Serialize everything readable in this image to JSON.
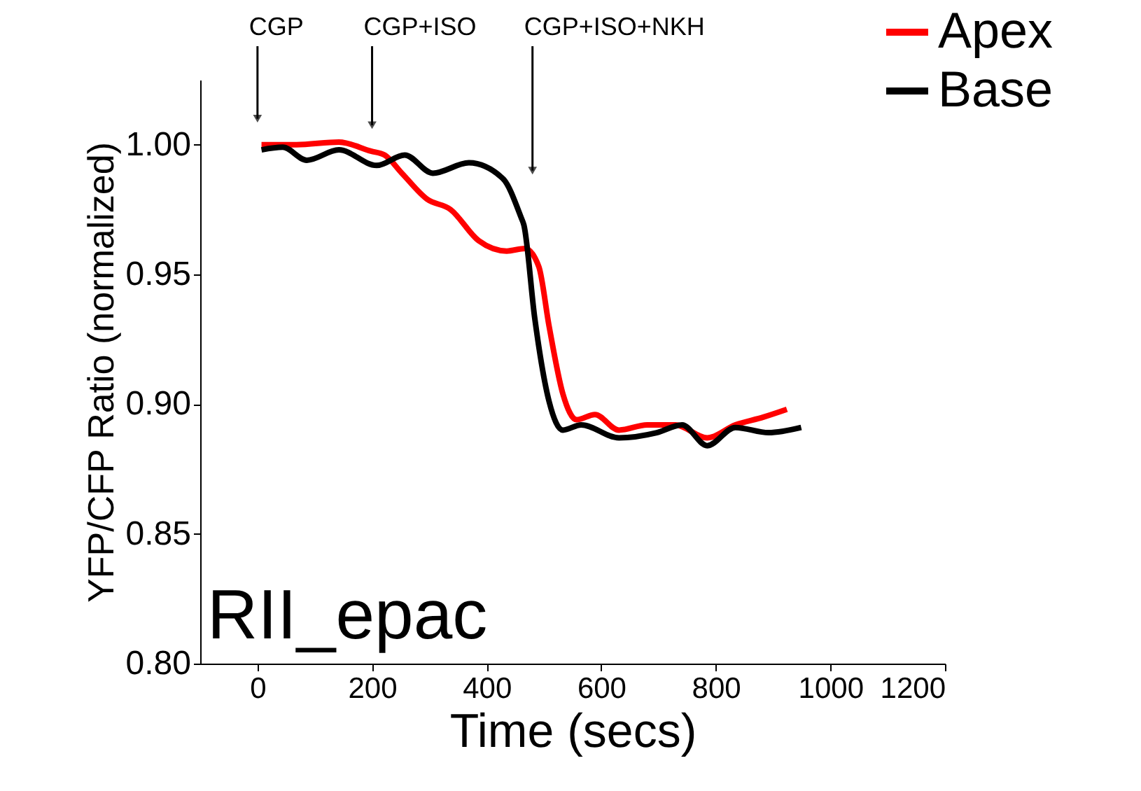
{
  "chart_data": {
    "type": "line",
    "xlabel": "Time (secs)",
    "ylabel": "YFP/CFP Ratio (normalized)",
    "xlim": [
      -100,
      1200
    ],
    "xticks": [
      0,
      200,
      400,
      600,
      800,
      1000,
      1200
    ],
    "ylim": [
      0.8,
      1.025
    ],
    "yticks": [
      {
        "value": 0.8,
        "label": "0.80"
      },
      {
        "value": 0.85,
        "label": "0.85"
      },
      {
        "value": 0.9,
        "label": "0.90"
      },
      {
        "value": 0.95,
        "label": "0.95"
      },
      {
        "value": 1.0,
        "label": "1.00"
      }
    ],
    "grid": false,
    "legend": "top right",
    "marker": "none",
    "line_style": "solid",
    "annotations": [
      {
        "text": "CGP",
        "x": 0,
        "y": 1.01
      },
      {
        "text": "CGP+ISO",
        "x": 200,
        "y": 1.0075
      },
      {
        "text": "CGP+ISO+NKH",
        "x": 480,
        "y": 0.99
      },
      "RII_epac"
    ],
    "series": [
      {
        "name": "Apex",
        "color": "#ff0000",
        "x": [
          7,
          68,
          142,
          198,
          222,
          252,
          296,
          337,
          386,
          435,
          467,
          491,
          509,
          533,
          557,
          589,
          631,
          680,
          729,
          785,
          834,
          883,
          924
        ],
        "values": [
          1.0,
          1.0,
          1.001,
          0.9975,
          0.996,
          0.989,
          0.979,
          0.975,
          0.963,
          0.959,
          0.96,
          0.953,
          0.93,
          0.904,
          0.894,
          0.896,
          0.89,
          0.892,
          0.892,
          0.887,
          0.892,
          0.895,
          0.898
        ]
      },
      {
        "name": "Base",
        "color": "#000000",
        "x": [
          7,
          44,
          86,
          142,
          208,
          257,
          306,
          369,
          428,
          460,
          465,
          484,
          509,
          533,
          565,
          631,
          697,
          741,
          785,
          834,
          892,
          949
        ],
        "values": [
          0.998,
          0.999,
          0.994,
          0.998,
          0.992,
          0.996,
          0.989,
          0.993,
          0.987,
          0.972,
          0.969,
          0.933,
          0.901,
          0.89,
          0.892,
          0.887,
          0.889,
          0.892,
          0.884,
          0.891,
          0.889,
          0.891
        ]
      }
    ]
  }
}
